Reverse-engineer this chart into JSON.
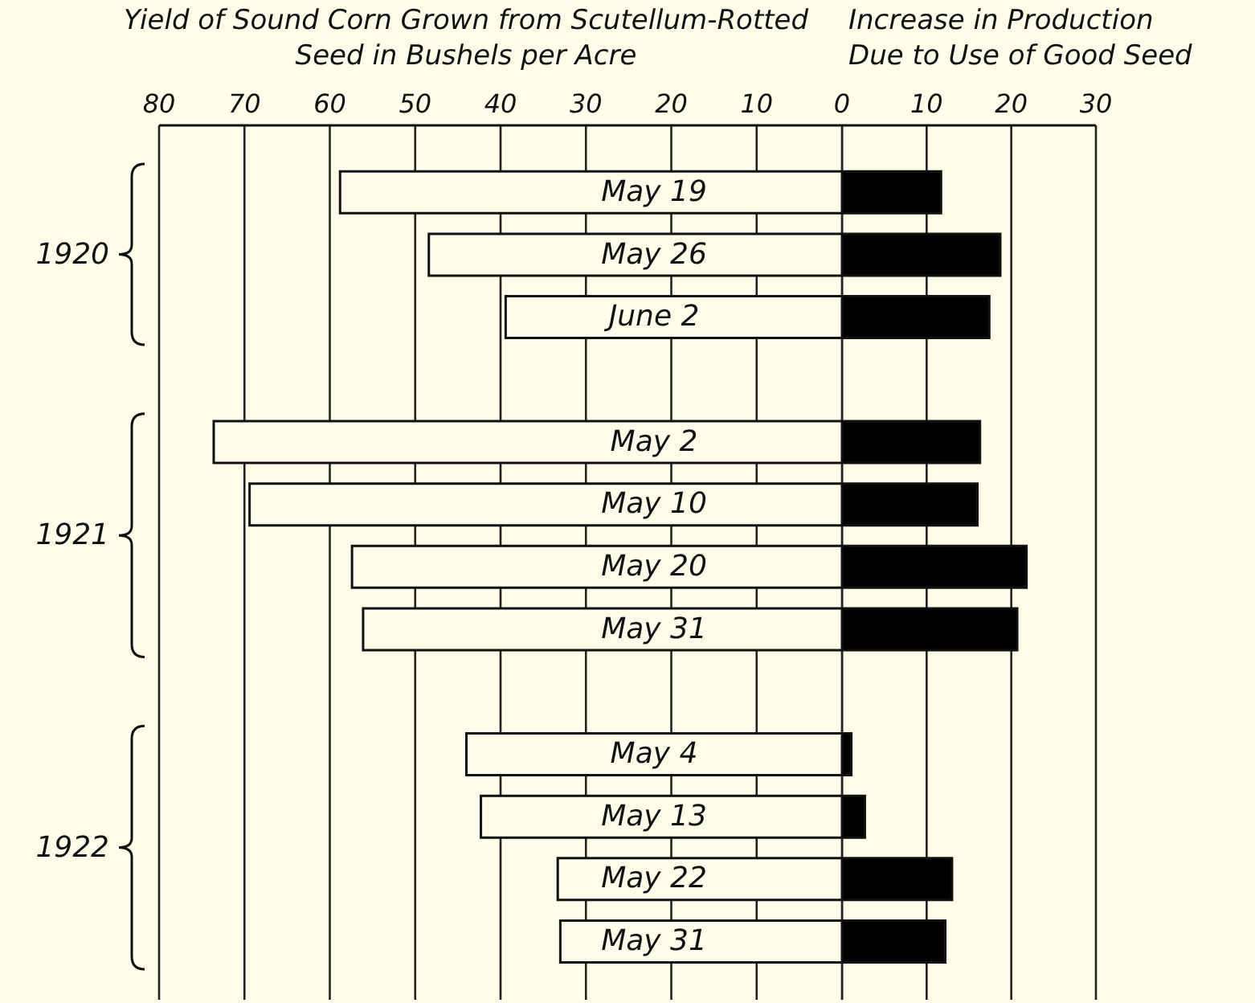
{
  "chart_data": [
    {
      "type": "bar",
      "orientation": "horizontal",
      "title": "Yield of Sound Corn Grown from Scutellum-Rotted\nSeed in Bushels per Acre",
      "categories": [
        "May 19",
        "May 26",
        "June 2",
        null,
        "May 2",
        "May 10",
        "May 20",
        "May 31",
        null,
        "May 4",
        "May 13",
        "May 22",
        "May 31"
      ],
      "values": [
        58.8,
        48.4,
        39.4,
        null,
        73.6,
        69.4,
        57.4,
        56.1,
        null,
        44.0,
        42.3,
        33.3,
        33.0
      ],
      "color": "#fdfde9",
      "xlim": [
        80,
        0
      ],
      "xticks": [
        80,
        70,
        60,
        50,
        40,
        30,
        20,
        10,
        0
      ],
      "grid": "x",
      "annotations": [
        "1920",
        "1921",
        "1922"
      ]
    },
    {
      "type": "bar",
      "orientation": "horizontal",
      "title": "Increase in Production\nDue to Use of Good Seed",
      "categories": [
        null,
        null,
        null,
        null,
        null,
        null,
        null,
        null,
        null,
        null,
        null,
        null,
        null
      ],
      "values": [
        11.7,
        18.7,
        17.4,
        null,
        16.3,
        16.0,
        21.8,
        20.7,
        null,
        1.1,
        2.7,
        13.0,
        12.2
      ],
      "color": "#000000",
      "xlim": [
        0,
        30
      ],
      "xticks": [
        {
          "value": 0,
          "label": null
        },
        10,
        20,
        30
      ],
      "grid": "x",
      "tick_labels": "x"
    }
  ]
}
